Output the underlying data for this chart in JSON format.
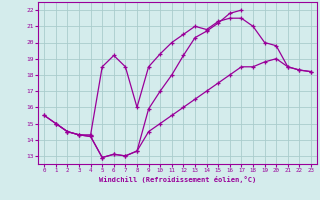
{
  "xlabel": "Windchill (Refroidissement éolien,°C)",
  "bg_color": "#d4ecec",
  "line_color": "#990099",
  "grid_color": "#aacccc",
  "xlim": [
    -0.5,
    23.5
  ],
  "ylim": [
    12.5,
    22.5
  ],
  "xticks": [
    0,
    1,
    2,
    3,
    4,
    5,
    6,
    7,
    8,
    9,
    10,
    11,
    12,
    13,
    14,
    15,
    16,
    17,
    18,
    19,
    20,
    21,
    22,
    23
  ],
  "yticks": [
    13,
    14,
    15,
    16,
    17,
    18,
    19,
    20,
    21,
    22
  ],
  "line1_x": [
    0,
    1,
    2,
    3,
    4,
    5,
    6,
    7,
    8,
    9,
    10,
    11,
    12,
    13,
    14,
    15,
    16,
    17,
    18,
    19,
    20,
    21,
    22,
    23
  ],
  "line1_y": [
    15.5,
    15.0,
    14.5,
    14.3,
    14.3,
    18.5,
    19.2,
    18.5,
    16.0,
    18.5,
    19.3,
    20.0,
    20.5,
    21.0,
    20.8,
    21.3,
    21.5,
    21.5,
    21.0,
    20.0,
    19.8,
    18.5,
    18.3,
    18.2
  ],
  "line2_x": [
    0,
    1,
    2,
    3,
    4,
    5,
    6,
    7,
    8,
    9,
    10,
    11,
    12,
    13,
    14,
    15,
    16,
    17
  ],
  "line2_y": [
    15.5,
    15.0,
    14.5,
    14.3,
    14.2,
    12.9,
    13.1,
    13.0,
    13.3,
    15.9,
    17.0,
    18.0,
    19.2,
    20.3,
    20.7,
    21.2,
    21.8,
    22.0
  ],
  "line3_x": [
    1,
    2,
    3,
    4,
    5,
    6,
    7,
    8,
    9,
    10,
    11,
    12,
    13,
    14,
    15,
    16,
    17,
    18,
    19,
    20,
    21,
    22,
    23
  ],
  "line3_y": [
    15.0,
    14.5,
    14.3,
    14.2,
    12.9,
    13.1,
    13.0,
    13.3,
    14.5,
    15.0,
    15.5,
    16.0,
    16.5,
    17.0,
    17.5,
    18.0,
    18.5,
    18.5,
    18.8,
    19.0,
    18.5,
    18.3,
    18.2
  ]
}
